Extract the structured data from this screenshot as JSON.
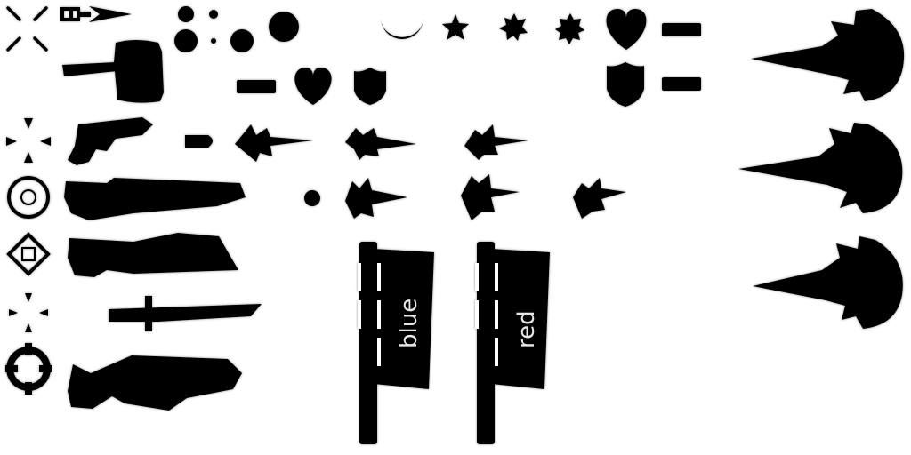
{
  "sheet": {
    "ink_color": "#000000",
    "shadow_color": "#555555",
    "background_color": "#ffffff"
  },
  "flags": [
    {
      "label": "blue"
    },
    {
      "label": "red"
    }
  ],
  "crosshairs": [
    "x-crosshair-icon",
    "four-point-crosshair-icon",
    "ring-crosshair-icon",
    "diamond-crosshair-icon",
    "dot-crosshair-icon",
    "circle-notch-crosshair-icon"
  ],
  "weapons": [
    "rocket-icon",
    "hammer-icon",
    "pistol-icon",
    "bullet-icon",
    "shotgun-icon",
    "grenade-launcher-icon",
    "katana-icon",
    "laser-rifle-icon"
  ],
  "effects": [
    "muzzle-flash-large-icon",
    "muzzle-flash-small-icon",
    "particle-dot-icon",
    "moon-crescent-icon",
    "star-icon"
  ],
  "pickups": [
    "heart-icon",
    "armor-shield-icon",
    "health-bar-icon"
  ]
}
